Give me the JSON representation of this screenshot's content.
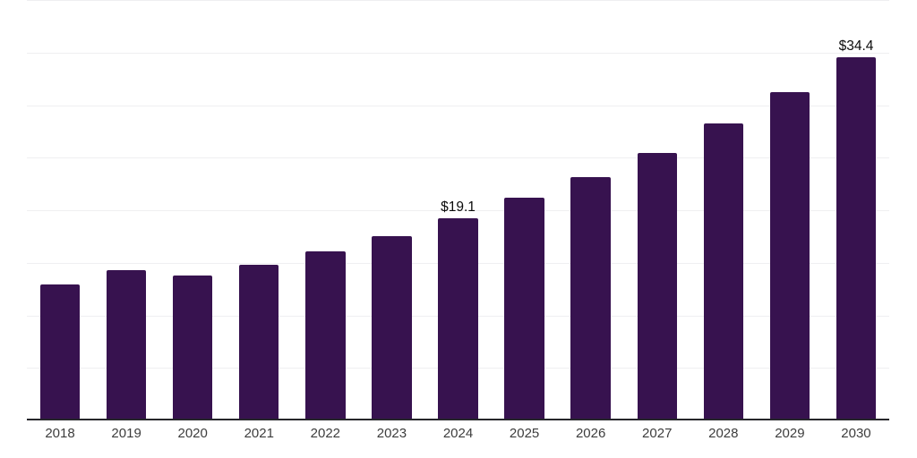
{
  "chart_data": {
    "type": "bar",
    "title": "",
    "xlabel": "",
    "ylabel": "",
    "categories": [
      "2018",
      "2019",
      "2020",
      "2021",
      "2022",
      "2023",
      "2024",
      "2025",
      "2026",
      "2027",
      "2028",
      "2029",
      "2030"
    ],
    "values": [
      12.8,
      14.1,
      13.6,
      14.6,
      15.9,
      17.4,
      19.1,
      21.0,
      23.0,
      25.3,
      28.1,
      31.1,
      34.4
    ],
    "value_labels": {
      "2024": "$19.1",
      "2030": "$34.4"
    },
    "ylim": [
      0,
      40
    ],
    "gridline_step": 5,
    "grid": true,
    "legend_position": "none",
    "bar_color": "#37124F",
    "axis_color": "#26262b",
    "gridline_color": "#efeff1",
    "tick_label_color": "#3d3d3d",
    "value_label_color": "#0b0b0b",
    "background_color": "#ffffff"
  }
}
